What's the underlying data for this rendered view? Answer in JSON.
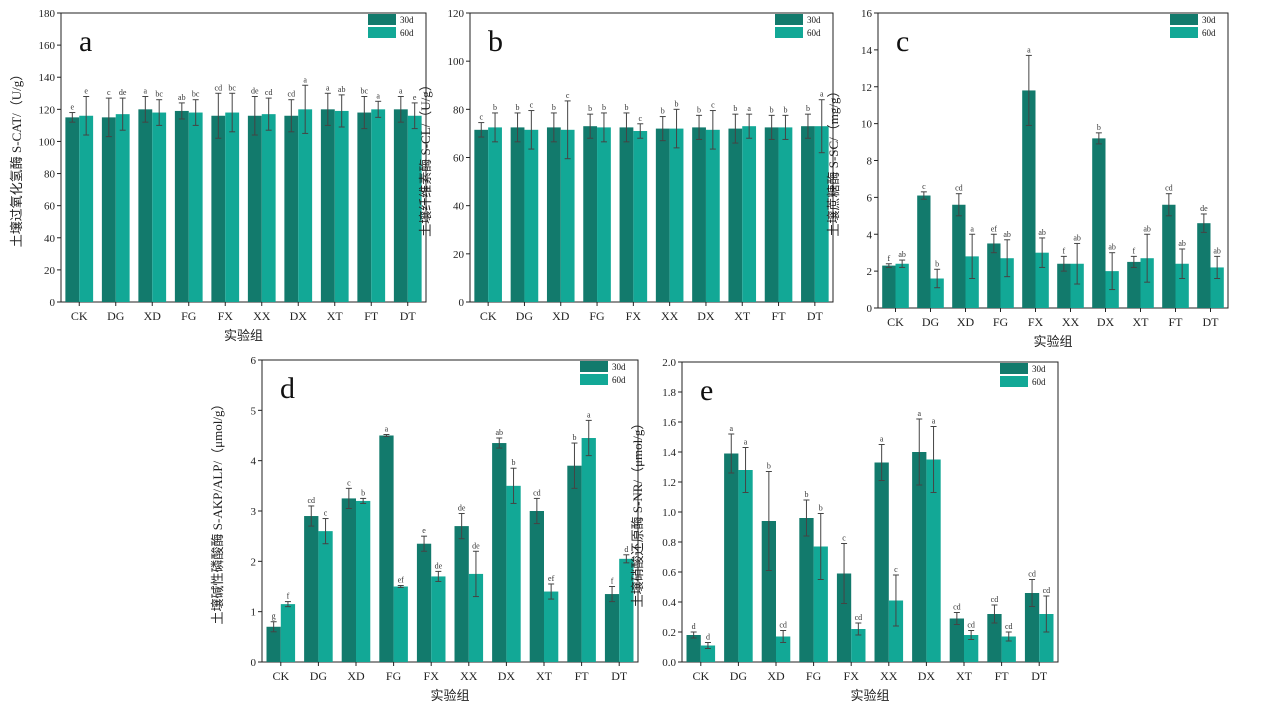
{
  "colors": {
    "series1": "#127a6c",
    "series2": "#12a896",
    "axis": "#222222"
  },
  "chart_data": [
    {
      "type": "bar",
      "panel": "a",
      "ylabel": "土壤过氧化氢酶 S-CAT/（U/g）",
      "xlabel": "实验组",
      "ylim": [
        0,
        180
      ],
      "yticks": [
        0,
        20,
        40,
        60,
        80,
        100,
        120,
        140,
        160,
        180
      ],
      "categories": [
        "CK",
        "DG",
        "XD",
        "FG",
        "FX",
        "XX",
        "DX",
        "XT",
        "FT",
        "DT"
      ],
      "series": [
        {
          "name": "30d",
          "values": [
            115,
            115,
            120,
            119,
            116,
            116,
            116,
            120,
            118,
            120
          ],
          "errors": [
            3,
            12,
            8,
            5,
            14,
            12,
            10,
            10,
            10,
            8
          ],
          "letters": [
            "e",
            "c",
            "a",
            "ab",
            "cd",
            "de",
            "cd",
            "a",
            "bc",
            "a"
          ]
        },
        {
          "name": "60d",
          "values": [
            116,
            117,
            118,
            118,
            118,
            117,
            120,
            119,
            120,
            116
          ],
          "errors": [
            12,
            10,
            8,
            8,
            12,
            10,
            15,
            10,
            5,
            8
          ],
          "letters": [
            "e",
            "de",
            "bc",
            "bc",
            "bc",
            "cd",
            "a",
            "ab",
            "a",
            "e"
          ]
        }
      ]
    },
    {
      "type": "bar",
      "panel": "b",
      "ylabel": "土壤纤维素酶 S-CL/（U/g）",
      "xlabel": "",
      "ylim": [
        0,
        120
      ],
      "yticks": [
        0,
        20,
        40,
        60,
        80,
        100,
        120
      ],
      "categories": [
        "CK",
        "DG",
        "XD",
        "FG",
        "FX",
        "XX",
        "DX",
        "XT",
        "FT",
        "DT"
      ],
      "series": [
        {
          "name": "30d",
          "values": [
            71.5,
            72.5,
            72.5,
            73,
            72.5,
            72,
            72.5,
            72,
            72.5,
            73
          ],
          "errors": [
            3,
            6,
            6,
            5,
            6,
            5,
            5,
            6,
            5,
            5
          ],
          "letters": [
            "c",
            "b",
            "b",
            "b",
            "b",
            "b",
            "b",
            "b",
            "b",
            "b"
          ]
        },
        {
          "name": "60d",
          "values": [
            72.5,
            71.5,
            71.5,
            72.5,
            71,
            72,
            71.5,
            73,
            72.5,
            73
          ],
          "errors": [
            6,
            8,
            12,
            6,
            3,
            8,
            8,
            5,
            5,
            11
          ],
          "letters": [
            "b",
            "c",
            "c",
            "b",
            "c",
            "b",
            "c",
            "a",
            "b",
            "a"
          ]
        }
      ]
    },
    {
      "type": "bar",
      "panel": "c",
      "ylabel": "土壤蔗糖酶 S-SC/（mg/g）",
      "xlabel": "实验组",
      "ylim": [
        0,
        16
      ],
      "yticks": [
        0,
        2,
        4,
        6,
        8,
        10,
        12,
        14,
        16
      ],
      "categories": [
        "CK",
        "DG",
        "XD",
        "FG",
        "FX",
        "XX",
        "DX",
        "XT",
        "FT",
        "DT"
      ],
      "series": [
        {
          "name": "30d",
          "values": [
            2.3,
            6.1,
            5.6,
            3.5,
            11.8,
            2.4,
            9.2,
            2.5,
            5.6,
            4.6
          ],
          "errors": [
            0.1,
            0.2,
            0.6,
            0.5,
            1.9,
            0.4,
            0.3,
            0.3,
            0.6,
            0.5
          ],
          "letters": [
            "f",
            "c",
            "cd",
            "ef",
            "a",
            "f",
            "b",
            "f",
            "cd",
            "de"
          ]
        },
        {
          "name": "60d",
          "values": [
            2.4,
            1.6,
            2.8,
            2.7,
            3.0,
            2.4,
            2.0,
            2.7,
            2.4,
            2.2
          ],
          "errors": [
            0.2,
            0.5,
            1.2,
            1.0,
            0.8,
            1.1,
            1.0,
            1.3,
            0.8,
            0.6
          ],
          "letters": [
            "ab",
            "b",
            "a",
            "ab",
            "ab",
            "ab",
            "ab",
            "ab",
            "ab",
            "ab"
          ]
        }
      ]
    },
    {
      "type": "bar",
      "panel": "d",
      "ylabel": "土壤碱性磷酸酶 S-AKP/ALP/（μmol/g）",
      "xlabel": "实验组",
      "ylim": [
        0,
        6
      ],
      "yticks": [
        0,
        1,
        2,
        3,
        4,
        5,
        6
      ],
      "categories": [
        "CK",
        "DG",
        "XD",
        "FG",
        "FX",
        "XX",
        "DX",
        "XT",
        "FT",
        "DT"
      ],
      "series": [
        {
          "name": "30d",
          "values": [
            0.7,
            2.9,
            3.25,
            4.5,
            2.35,
            2.7,
            4.35,
            3.0,
            3.9,
            1.35
          ],
          "errors": [
            0.1,
            0.2,
            0.2,
            0.02,
            0.15,
            0.25,
            0.1,
            0.25,
            0.45,
            0.15
          ],
          "letters": [
            "g",
            "cd",
            "c",
            "a",
            "e",
            "de",
            "ab",
            "cd",
            "b",
            "f"
          ]
        },
        {
          "name": "60d",
          "values": [
            1.15,
            2.6,
            3.2,
            1.5,
            1.7,
            1.75,
            3.5,
            1.4,
            4.45,
            2.05
          ],
          "errors": [
            0.05,
            0.25,
            0.05,
            0.02,
            0.1,
            0.45,
            0.35,
            0.15,
            0.35,
            0.08
          ],
          "letters": [
            "f",
            "c",
            "b",
            "ef",
            "de",
            "de",
            "b",
            "ef",
            "a",
            "d"
          ]
        }
      ]
    },
    {
      "type": "bar",
      "panel": "e",
      "ylabel": "土壤硝酸还原酶 S-NR/（μmol/g）",
      "xlabel": "实验组",
      "ylim": [
        0,
        2.0
      ],
      "yticks": [
        0.0,
        0.2,
        0.4,
        0.6,
        0.8,
        1.0,
        1.2,
        1.4,
        1.6,
        1.8,
        2.0
      ],
      "categories": [
        "CK",
        "DG",
        "XD",
        "FG",
        "FX",
        "XX",
        "DX",
        "XT",
        "FT",
        "DT"
      ],
      "series": [
        {
          "name": "30d",
          "values": [
            0.18,
            1.39,
            0.94,
            0.96,
            0.59,
            1.33,
            1.4,
            0.29,
            0.32,
            0.46
          ],
          "errors": [
            0.02,
            0.13,
            0.33,
            0.12,
            0.2,
            0.12,
            0.22,
            0.04,
            0.06,
            0.09
          ],
          "letters": [
            "d",
            "a",
            "b",
            "b",
            "c",
            "a",
            "a",
            "cd",
            "cd",
            "cd"
          ]
        },
        {
          "name": "60d",
          "values": [
            0.11,
            1.28,
            0.17,
            0.77,
            0.22,
            0.41,
            1.35,
            0.18,
            0.17,
            0.32
          ],
          "errors": [
            0.02,
            0.15,
            0.04,
            0.22,
            0.04,
            0.17,
            0.22,
            0.03,
            0.03,
            0.12
          ],
          "letters": [
            "d",
            "a",
            "cd",
            "b",
            "cd",
            "c",
            "a",
            "cd",
            "cd",
            "cd"
          ]
        }
      ]
    }
  ]
}
